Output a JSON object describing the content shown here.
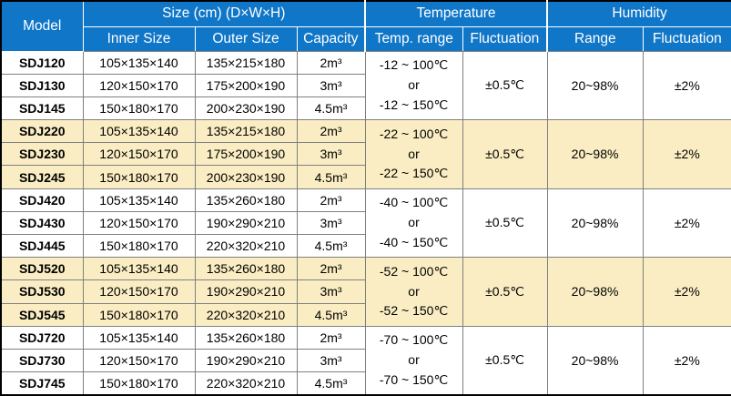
{
  "colors": {
    "header_bg": "#1076C8",
    "header_text": "#FFFFFF",
    "highlight_row_bg": "#FAEDC3",
    "row_bg": "#FFFFFF",
    "grid_line": "#7F7F7F",
    "outer_border": "#000000",
    "body_text": "#000000"
  },
  "table": {
    "header": {
      "model_label": "Model",
      "size_group_label": "Size (cm) (D×W×H)",
      "temperature_group_label": "Temperature",
      "humidity_group_label": "Humidity",
      "inner_size_label": "Inner Size",
      "outer_size_label": "Outer Size",
      "capacity_label": "Capacity",
      "temp_range_label": "Temp. range",
      "temp_fluctuation_label": "Fluctuation",
      "humidity_range_label": "Range",
      "humidity_fluctuation_label": "Fluctuation"
    },
    "groups": [
      {
        "highlighted": false,
        "rows": [
          {
            "model": "SDJ120",
            "inner_size": "105×135×140",
            "outer_size": "135×215×180",
            "capacity": "2m³"
          },
          {
            "model": "SDJ130",
            "inner_size": "120×150×170",
            "outer_size": "175×200×190",
            "capacity": "3m³"
          },
          {
            "model": "SDJ145",
            "inner_size": "150×180×170",
            "outer_size": "200×230×190",
            "capacity": "4.5m³"
          }
        ],
        "temp_range": "-12 ~ 100℃\nor\n-12 ~ 150℃",
        "temp_fluctuation": "±0.5℃",
        "humidity_range": "20~98%",
        "humidity_fluctuation": "±2%"
      },
      {
        "highlighted": true,
        "rows": [
          {
            "model": "SDJ220",
            "inner_size": "105×135×140",
            "outer_size": "135×215×180",
            "capacity": "2m³"
          },
          {
            "model": "SDJ230",
            "inner_size": "120×150×170",
            "outer_size": "175×200×190",
            "capacity": "3m³"
          },
          {
            "model": "SDJ245",
            "inner_size": "150×180×170",
            "outer_size": "200×230×190",
            "capacity": "4.5m³"
          }
        ],
        "temp_range": "-22 ~ 100℃\nor\n-22 ~ 150℃",
        "temp_fluctuation": "±0.5℃",
        "humidity_range": "20~98%",
        "humidity_fluctuation": "±2%"
      },
      {
        "highlighted": false,
        "rows": [
          {
            "model": "SDJ420",
            "inner_size": "105×135×140",
            "outer_size": "135×260×180",
            "capacity": "2m³"
          },
          {
            "model": "SDJ430",
            "inner_size": "120×150×170",
            "outer_size": "190×290×210",
            "capacity": "3m³"
          },
          {
            "model": "SDJ445",
            "inner_size": "150×180×170",
            "outer_size": "220×320×210",
            "capacity": "4.5m³"
          }
        ],
        "temp_range": "-40 ~ 100℃\nor\n-40 ~ 150℃",
        "temp_fluctuation": "±0.5℃",
        "humidity_range": "20~98%",
        "humidity_fluctuation": "±2%"
      },
      {
        "highlighted": true,
        "rows": [
          {
            "model": "SDJ520",
            "inner_size": "105×135×140",
            "outer_size": "135×260×180",
            "capacity": "2m³"
          },
          {
            "model": "SDJ530",
            "inner_size": "120×150×170",
            "outer_size": "190×290×210",
            "capacity": "3m³"
          },
          {
            "model": "SDJ545",
            "inner_size": "150×180×170",
            "outer_size": "220×320×210",
            "capacity": "4.5m³"
          }
        ],
        "temp_range": "-52 ~ 100℃\nor\n-52 ~ 150℃",
        "temp_fluctuation": "±0.5℃",
        "humidity_range": "20~98%",
        "humidity_fluctuation": "±2%"
      },
      {
        "highlighted": false,
        "rows": [
          {
            "model": "SDJ720",
            "inner_size": "105×135×140",
            "outer_size": "135×260×180",
            "capacity": "2m³"
          },
          {
            "model": "SDJ730",
            "inner_size": "120×150×170",
            "outer_size": "190×290×210",
            "capacity": "3m³"
          },
          {
            "model": "SDJ745",
            "inner_size": "150×180×170",
            "outer_size": "220×320×210",
            "capacity": "4.5m³"
          }
        ],
        "temp_range": "-70 ~ 100℃\nor\n-70 ~ 150℃",
        "temp_fluctuation": "±0.5℃",
        "humidity_range": "20~98%",
        "humidity_fluctuation": "±2%"
      }
    ]
  }
}
